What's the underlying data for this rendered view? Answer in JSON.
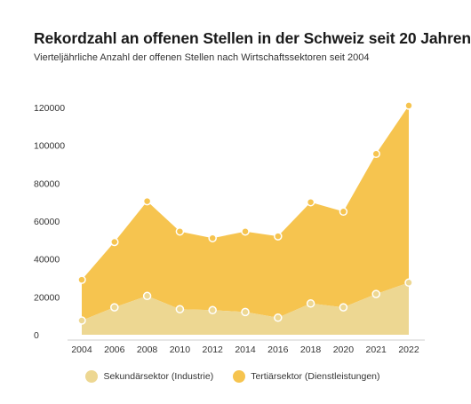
{
  "header": {
    "title": "Rekordzahl an offenen Stellen in der Schweiz seit 20 Jahren",
    "subtitle": "Vierteljährliche Anzahl der offenen Stellen nach Wirtschaftssektoren seit 2004"
  },
  "chart_data": {
    "type": "area",
    "stacked": true,
    "title": "Rekordzahl an offenen Stellen in der Schweiz seit 20 Jahren",
    "subtitle": "Vierteljährliche Anzahl der offenen Stellen nach Wirtschaftssektoren seit 2004",
    "xlabel": "",
    "ylabel": "",
    "categories": [
      "2004",
      "2006",
      "2008",
      "2010",
      "2012",
      "2014",
      "2016",
      "2018",
      "2020",
      "2021",
      "2022"
    ],
    "yticks": [
      "0",
      "20000",
      "40000",
      "60000",
      "80000",
      "100000",
      "120000"
    ],
    "ylim": [
      0,
      125000
    ],
    "grid": false,
    "legend_position": "bottom",
    "series": [
      {
        "name": "Sekundärsektor (Industrie)",
        "color": "#edd792",
        "values": [
          7500,
          14500,
          20500,
          13500,
          13000,
          12000,
          9000,
          16500,
          14500,
          21500,
          27500
        ]
      },
      {
        "name": "Tertiärsektor (Dienstleistungen)",
        "color": "#f6c44f",
        "values": [
          21500,
          34500,
          50000,
          41000,
          38000,
          42500,
          43000,
          53500,
          50500,
          74000,
          93500
        ]
      }
    ]
  }
}
